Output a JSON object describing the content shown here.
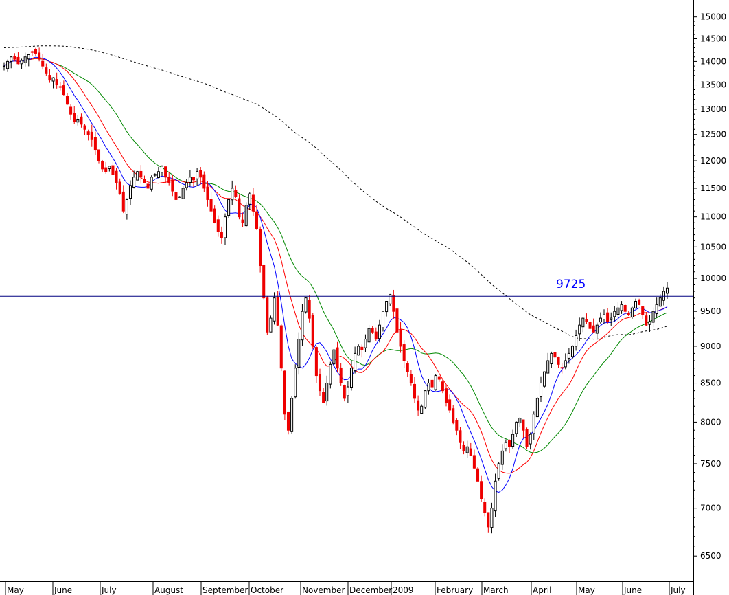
{
  "chart_data": {
    "type": "candlestick",
    "title": "",
    "y_scale": "log",
    "ylim": [
      6250,
      15400
    ],
    "grid": false,
    "legend": "none",
    "y_ticks": [
      6500,
      7000,
      7500,
      8000,
      8500,
      9000,
      9500,
      10000,
      10500,
      11000,
      11500,
      12000,
      12500,
      13000,
      13500,
      14000,
      14500,
      15000
    ],
    "x_months": [
      "May",
      "June",
      "July",
      "August",
      "September",
      "October",
      "November",
      "December",
      "2009",
      "February",
      "March",
      "April",
      "May",
      "June",
      "July"
    ],
    "colors": {
      "up": "#000000",
      "down": "#ee0000",
      "ma_short": "#0000ff",
      "ma_mid": "#ff0000",
      "ma_long": "#008800",
      "ma_200": "#000000",
      "hline": "#000080",
      "annotation": "#0000ff"
    },
    "candles_close": [
      13900,
      14000,
      14100,
      14050,
      13950,
      14020,
      14100,
      14150,
      14200,
      14180,
      14050,
      13900,
      13750,
      13600,
      13650,
      13500,
      13450,
      13300,
      13100,
      12900,
      12750,
      12800,
      12700,
      12600,
      12500,
      12400,
      12200,
      12000,
      11850,
      11800,
      11900,
      11750,
      11600,
      11400,
      11100,
      11300,
      11550,
      11700,
      11800,
      11700,
      11600,
      11500,
      11700,
      11750,
      11800,
      11900,
      11700,
      11600,
      11450,
      11300,
      11350,
      11500,
      11600,
      11700,
      11650,
      11800,
      11700,
      11500,
      11300,
      11100,
      10900,
      10750,
      10650,
      11000,
      11300,
      11500,
      11350,
      11000,
      10900,
      11200,
      11400,
      11100,
      10800,
      10200,
      9700,
      9200,
      9400,
      9700,
      9300,
      8700,
      8100,
      7900,
      8300,
      8700,
      9100,
      9500,
      9700,
      9400,
      9000,
      8600,
      8400,
      8250,
      8500,
      8750,
      8950,
      8700,
      8500,
      8300,
      8450,
      8700,
      8900,
      9000,
      8950,
      9100,
      9250,
      9200,
      9100,
      9300,
      9500,
      9650,
      9750,
      9500,
      9200,
      9000,
      8800,
      8650,
      8500,
      8300,
      8150,
      8200,
      8400,
      8500,
      8450,
      8600,
      8550,
      8400,
      8250,
      8150,
      8000,
      7900,
      7750,
      7650,
      7700,
      7600,
      7450,
      7300,
      7100,
      6950,
      6800,
      7000,
      7300,
      7500,
      7650,
      7750,
      7700,
      7850,
      8000,
      8050,
      7900,
      7700,
      7850,
      8100,
      8300,
      8500,
      8650,
      8800,
      8900,
      8850,
      8750,
      8700,
      8800,
      8900,
      9000,
      9150,
      9300,
      9400,
      9350,
      9250,
      9200,
      9300,
      9400,
      9450,
      9350,
      9400,
      9500,
      9550,
      9600,
      9500,
      9450,
      9550,
      9650,
      9600,
      9450,
      9300,
      9350,
      9500,
      9600,
      9700,
      9800,
      9850
    ]
  },
  "annotation": {
    "label": "9725",
    "level": 9725
  }
}
